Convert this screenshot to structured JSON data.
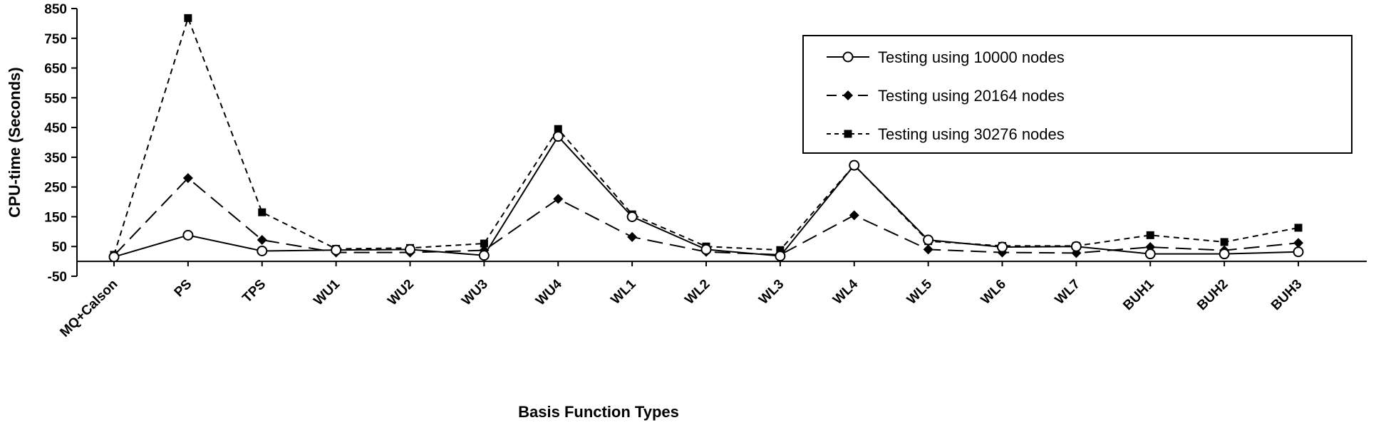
{
  "chart_data": {
    "type": "line",
    "title": "",
    "xlabel": "Basis Function Types",
    "ylabel": "CPU-time (Seconds)",
    "ylim": [
      -50,
      850
    ],
    "yticks": [
      -50,
      50,
      150,
      250,
      350,
      450,
      550,
      650,
      750,
      850
    ],
    "categories": [
      "MQ+Calson",
      "PS",
      "TPS",
      "WU1",
      "WU2",
      "WU3",
      "WU4",
      "WL1",
      "WL2",
      "WL3",
      "WL4",
      "WL5",
      "WL6",
      "WL7",
      "BUH1",
      "BUH2",
      "BUH3"
    ],
    "grid": false,
    "legend_position": "top-right",
    "series": [
      {
        "name": "Testing using 10000 nodes",
        "marker": "circle-open",
        "line": "solid",
        "values": [
          15,
          88,
          35,
          38,
          40,
          20,
          420,
          150,
          40,
          18,
          323,
          72,
          48,
          50,
          25,
          25,
          32
        ]
      },
      {
        "name": "Testing using 20164 nodes",
        "marker": "diamond",
        "line": "long-dash",
        "values": [
          20,
          280,
          72,
          30,
          30,
          37,
          210,
          82,
          32,
          22,
          155,
          40,
          30,
          28,
          48,
          37,
          62
        ]
      },
      {
        "name": "Testing using 30276 nodes",
        "marker": "square",
        "line": "short-dash",
        "values": [
          22,
          818,
          165,
          42,
          45,
          60,
          445,
          158,
          50,
          38,
          323,
          68,
          52,
          52,
          88,
          65,
          113
        ]
      }
    ]
  }
}
